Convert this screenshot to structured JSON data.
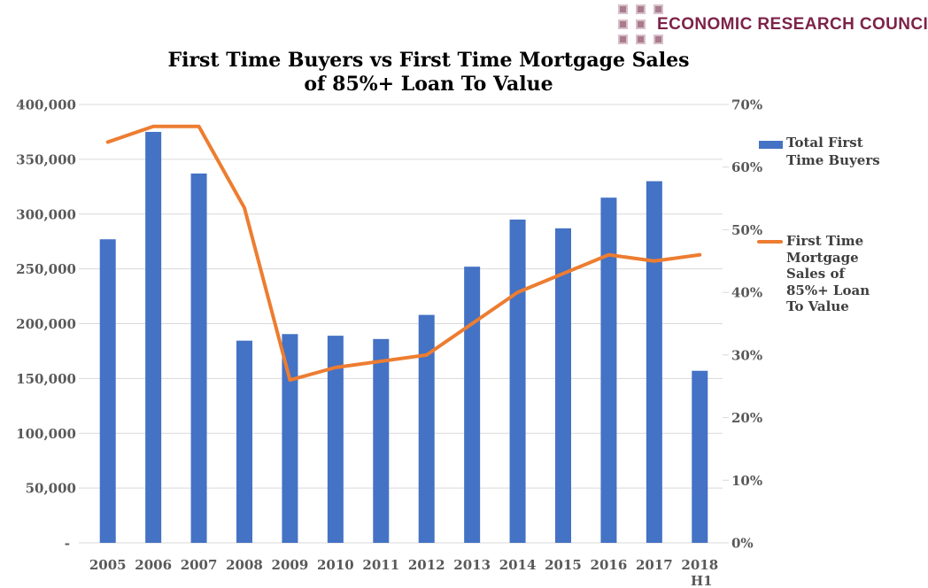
{
  "logo": {
    "text": "ECONOMIC RESEARCH COUNCIL",
    "text_color": "#7d2348",
    "square_fill": "#aa7a8e",
    "square_border": "#d6bfc9"
  },
  "title": {
    "line1": "First Time Buyers vs First Time Mortgage Sales",
    "line2": "of 85%+ Loan To Value"
  },
  "legend": {
    "position": "right",
    "series1": {
      "label_lines": [
        "Total First",
        "Time Buyers"
      ],
      "swatch_color": "#4472C4",
      "swatch_type": "bar"
    },
    "series2": {
      "label_lines": [
        "First Time",
        "Mortgage",
        "Sales of",
        "85%+ Loan",
        "To Value"
      ],
      "swatch_color": "#ED7D31",
      "swatch_type": "line"
    }
  },
  "chart_data": {
    "type": "bar",
    "subtype": "combo bar+line, dual axis",
    "title": "First Time Buyers vs First Time Mortgage Sales of 85%+ Loan To Value",
    "categories": [
      "2005",
      "2006",
      "2007",
      "2008",
      "2009",
      "2010",
      "2011",
      "2012",
      "2013",
      "2014",
      "2015",
      "2016",
      "2017",
      "2018 H1"
    ],
    "series": [
      {
        "name": "Total First Time Buyers",
        "type": "bar",
        "axis": "left",
        "color": "#4472C4",
        "values": [
          277000,
          375000,
          337000,
          184500,
          190500,
          189000,
          186000,
          208000,
          252000,
          295000,
          287000,
          315000,
          330000,
          157000
        ]
      },
      {
        "name": "First Time Mortgage Sales of 85%+ Loan To Value",
        "type": "line",
        "axis": "right",
        "color": "#ED7D31",
        "values": [
          64,
          66.5,
          66.5,
          53.5,
          26,
          28,
          29,
          30,
          35,
          40,
          43,
          46,
          45,
          46
        ]
      }
    ],
    "left_axis": {
      "min": 0,
      "max": 400000,
      "tick_interval": 50000,
      "tick_labels": [
        "400,000",
        "350,000",
        "300,000",
        "250,000",
        "200,000",
        "150,000",
        "100,000",
        "50,000",
        "-"
      ]
    },
    "right_axis": {
      "min": 0,
      "max": 70,
      "tick_interval": 10,
      "tick_labels": [
        "70%",
        "60%",
        "50%",
        "40%",
        "30%",
        "20%",
        "10%",
        "0%"
      ]
    },
    "grid": "horizontal",
    "gridline_color": "#d9d9d9",
    "axis_label_color": "#595959",
    "xlabel": "",
    "ylabel_left": "",
    "ylabel_right": ""
  }
}
